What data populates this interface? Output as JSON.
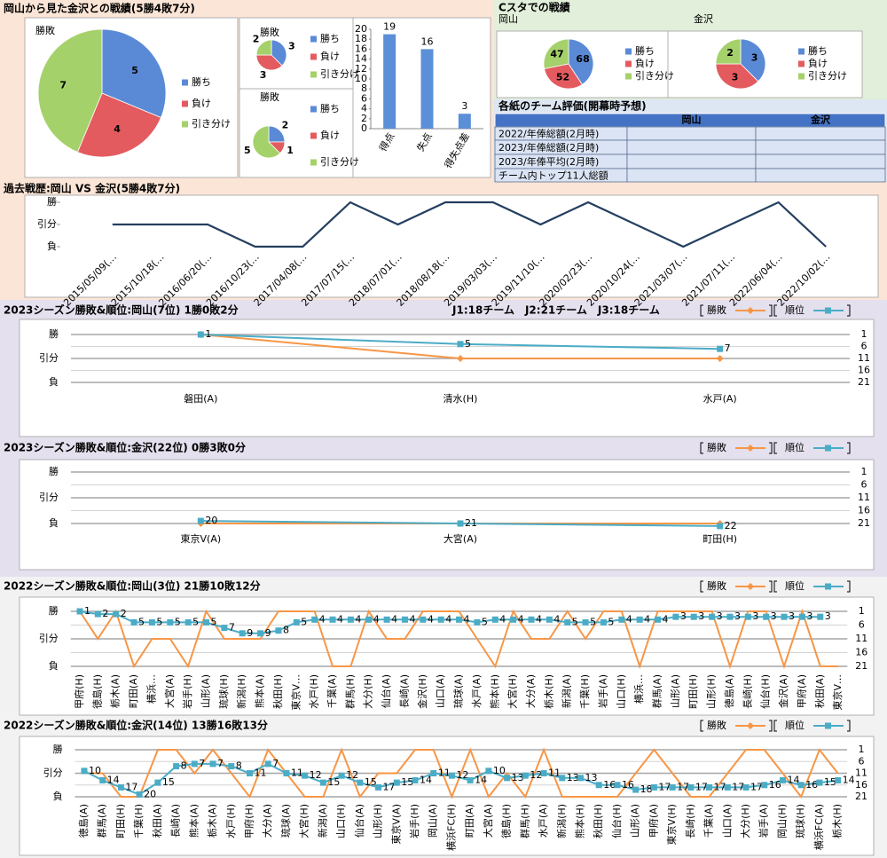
{
  "panels": {
    "matchup_title": "岡山から見た金沢との戦績(5勝4敗7分)",
    "home_title": "Cスタでの戦績"
  },
  "table": {
    "title": "各紙のチーム評価(開幕時予想)",
    "columns": [
      "岡山",
      "金沢"
    ],
    "row_labels": [
      "2022/年俸総額(2月時)",
      "2023/年俸総額(2月時)",
      "2023/年俸平均(2月時)",
      "チーム内トップ11人総額"
    ]
  },
  "chart_data": [
    {
      "type": "pie",
      "title": "勝敗",
      "categories": [
        "勝ち",
        "負け",
        "引き分け"
      ],
      "values": [
        5,
        4,
        7
      ],
      "colors": [
        "#5a8ad6",
        "#e35b5f",
        "#a5d16a"
      ]
    },
    {
      "type": "pie",
      "title": "勝敗",
      "categories": [
        "勝ち",
        "負け",
        "引き分け"
      ],
      "values": [
        3,
        3,
        2
      ],
      "colors": [
        "#5a8ad6",
        "#e35b5f",
        "#a5d16a"
      ]
    },
    {
      "type": "pie",
      "title": "勝敗",
      "categories": [
        "勝ち",
        "負け",
        "引き分け"
      ],
      "values": [
        2,
        1,
        5
      ],
      "colors": [
        "#5a8ad6",
        "#e35b5f",
        "#a5d16a"
      ]
    },
    {
      "type": "bar",
      "categories": [
        "得点",
        "失点",
        "得失点差"
      ],
      "values": [
        19,
        16,
        3
      ],
      "color": "#5b8fd8",
      "ylim": [
        0,
        20
      ],
      "yticks": [
        0,
        2,
        4,
        6,
        8,
        10,
        12,
        14,
        16,
        18,
        20
      ]
    },
    {
      "type": "pie",
      "title": "岡山",
      "categories": [
        "勝ち",
        "負け",
        "引き分け"
      ],
      "values": [
        68,
        52,
        47
      ],
      "colors": [
        "#5a8ad6",
        "#e35b5f",
        "#a5d16a"
      ]
    },
    {
      "type": "pie",
      "title": "金沢",
      "categories": [
        "勝ち",
        "負け",
        "引き分け"
      ],
      "values": [
        3,
        3,
        2
      ],
      "colors": [
        "#5a8ad6",
        "#e35b5f",
        "#a5d16a"
      ]
    },
    {
      "type": "line",
      "title": "過去戦歴:岡山 VS 金沢(5勝4敗7分)",
      "color": "#243f60",
      "categories": [
        "2015/05/09(…",
        "2015/10/18(…",
        "2016/06/20(…",
        "2016/10/23(…",
        "2017/04/08(…",
        "2017/07/15(…",
        "2018/07/01(…",
        "2018/08/18(…",
        "2019/03/03(…",
        "2019/11/10(…",
        "2020/02/23(…",
        "2020/10/24(…",
        "2021/03/07(…",
        "2021/07/11(…",
        "2022/06/04(…",
        "2022/10/02(…"
      ],
      "values": [
        2,
        2,
        2,
        1,
        1,
        3,
        2,
        3,
        3,
        2,
        3,
        2,
        1,
        2,
        3,
        1
      ],
      "ylim": [
        0.76,
        3.24
      ],
      "yticks": [
        {
          "value": 3,
          "label": "勝"
        },
        {
          "value": 2,
          "label": "引分"
        },
        {
          "value": 1,
          "label": "負"
        }
      ]
    },
    {
      "type": "line",
      "title": "2023シーズン勝敗&順位:岡山(7位) 1勝0敗2分",
      "note": "J1:18チーム　J2:21チーム　J3:18チーム",
      "categories": [
        "磐田(A)",
        "清水(H)",
        "水戸(A)"
      ],
      "series": [
        {
          "name": "勝敗",
          "color": "#f79646",
          "values": [
            3,
            2,
            2
          ]
        },
        {
          "name": "順位",
          "color": "#4bacc6",
          "axis": "y2",
          "values": [
            1,
            5,
            7
          ]
        }
      ],
      "ylim": [
        0.9,
        3.1
      ],
      "yticks": [
        {
          "value": 3,
          "label": "勝"
        },
        {
          "value": 2,
          "label": "引分"
        },
        {
          "value": 1,
          "label": "負"
        }
      ],
      "y2lim": [
        22,
        0
      ],
      "y2ticks": [
        1,
        6,
        11,
        16,
        21
      ]
    },
    {
      "type": "line",
      "title": "2023シーズン勝敗&順位:金沢(22位) 0勝3敗0分",
      "categories": [
        "東京V(A)",
        "大宮(A)",
        "町田(H)"
      ],
      "series": [
        {
          "name": "勝敗",
          "color": "#f79646",
          "values": [
            1,
            1,
            1
          ]
        },
        {
          "name": "順位",
          "color": "#4bacc6",
          "axis": "y2",
          "values": [
            20,
            21,
            22
          ]
        }
      ],
      "ylim": [
        0.9,
        3.1
      ],
      "yticks": [
        {
          "value": 3,
          "label": "勝"
        },
        {
          "value": 2,
          "label": "引分"
        },
        {
          "value": 1,
          "label": "負"
        }
      ],
      "y2lim": [
        22,
        0
      ],
      "y2ticks": [
        1,
        6,
        11,
        16,
        21
      ]
    },
    {
      "type": "line",
      "title": "2022シーズン勝敗&順位:岡山(3位) 21勝10敗12分",
      "categories": [
        "甲府(H)",
        "徳島(H)",
        "栃木(A)",
        "町田(A)",
        "横浜…",
        "大宮(A)",
        "岩手(H)",
        "山形(A)",
        "琉球(H)",
        "新潟(H)",
        "熊本(A)",
        "秋田(H)",
        "東京V…",
        "水戸(H)",
        "千葉(A)",
        "群馬(H)",
        "大分(H)",
        "仙台(A)",
        "長崎(A)",
        "金沢(H)",
        "山口(A)",
        "琉球(A)",
        "水戸(A)",
        "熊本(H)",
        "大宮(H)",
        "大分(A)",
        "栃木(H)",
        "新潟(A)",
        "千葉(H)",
        "岩手(A)",
        "山口(H)",
        "横浜…",
        "群馬(A)",
        "山形(A)",
        "町田(H)",
        "山形(H)",
        "徳島(A)",
        "長崎(H)",
        "仙台(H)",
        "金沢(A)",
        "甲府(A)",
        "秋田(A)",
        "東京V…"
      ],
      "series": [
        {
          "name": "勝敗",
          "color": "#f79646",
          "values": [
            3,
            2,
            3,
            1,
            2,
            2,
            1,
            3,
            2,
            2,
            2,
            3,
            3,
            3,
            1,
            1,
            3,
            2,
            2,
            3,
            3,
            3,
            2,
            1,
            3,
            2,
            2,
            3,
            2,
            3,
            3,
            1,
            3,
            3,
            3,
            3,
            1,
            3,
            3,
            1,
            3,
            1,
            1
          ]
        },
        {
          "name": "順位",
          "color": "#4bacc6",
          "axis": "y2",
          "values": [
            1,
            2,
            2,
            5,
            5,
            5,
            5,
            5,
            7,
            9,
            9,
            8,
            5,
            4,
            4,
            4,
            4,
            4,
            4,
            4,
            4,
            4,
            5,
            4,
            4,
            4,
            4,
            5,
            5,
            5,
            4,
            4,
            4,
            3,
            3,
            3,
            3,
            3,
            3,
            3,
            3,
            3,
            null
          ]
        }
      ],
      "ylim": [
        0.9,
        3.1
      ],
      "yticks": [
        {
          "value": 3,
          "label": "勝"
        },
        {
          "value": 2,
          "label": "引分"
        },
        {
          "value": 1,
          "label": "負"
        }
      ],
      "y2lim": [
        22,
        0
      ],
      "y2ticks": [
        1,
        6,
        11,
        16,
        21
      ]
    },
    {
      "type": "line",
      "title": "2022シーズン勝敗&順位:金沢(14位) 13勝16敗13分",
      "categories": [
        "徳島(A)",
        "群馬(A)",
        "町田(H)",
        "千葉(H)",
        "秋田(A)",
        "長崎(A)",
        "熊本(A)",
        "栃木(A)",
        "水戸(H)",
        "甲府(H)",
        "大分(A)",
        "琉球(A)",
        "大宮(H)",
        "新潟(A)",
        "山口(H)",
        "仙台(A)",
        "山形(H)",
        "東京V(A)",
        "岩手(H)",
        "岡山(A)",
        "横浜FC(H)",
        "町田(A)",
        "大宮(A)",
        "徳島(H)",
        "群馬(H)",
        "水戸(A)",
        "新潟(H)",
        "熊本(H)",
        "秋田(H)",
        "仙台(H)",
        "山形(A)",
        "甲府(A)",
        "東京V(H)",
        "長崎(H)",
        "千葉(A)",
        "山口(A)",
        "大分(H)",
        "岩手(A)",
        "岡山(H)",
        "琉球(H)",
        "横浜FC(A)",
        "栃木(H)"
      ],
      "series": [
        {
          "name": "勝敗",
          "color": "#f79646",
          "values": [
            2,
            2,
            1,
            1,
            3,
            3,
            2,
            3,
            2,
            1,
            3,
            2,
            1,
            1,
            3,
            1,
            2,
            2,
            3,
            3,
            1,
            3,
            1,
            2,
            1,
            3,
            1,
            1,
            1,
            1,
            2,
            3,
            2,
            1,
            1,
            2,
            3,
            3,
            2,
            1,
            3,
            2
          ]
        },
        {
          "name": "順位",
          "color": "#4bacc6",
          "axis": "y2",
          "values": [
            10,
            14,
            17,
            20,
            15,
            8,
            7,
            7,
            8,
            11,
            7,
            11,
            12,
            15,
            12,
            15,
            17,
            15,
            14,
            11,
            12,
            14,
            10,
            13,
            12,
            11,
            13,
            13,
            16,
            16,
            18,
            17,
            17,
            17,
            17,
            17,
            17,
            16,
            14,
            16,
            15,
            14
          ]
        }
      ],
      "ylim": [
        0.9,
        3.1
      ],
      "yticks": [
        {
          "value": 3,
          "label": "勝"
        },
        {
          "value": 2,
          "label": "引分"
        },
        {
          "value": 1,
          "label": "負"
        }
      ],
      "y2lim": [
        22,
        0
      ],
      "y2ticks": [
        1,
        6,
        11,
        16,
        21
      ]
    }
  ]
}
